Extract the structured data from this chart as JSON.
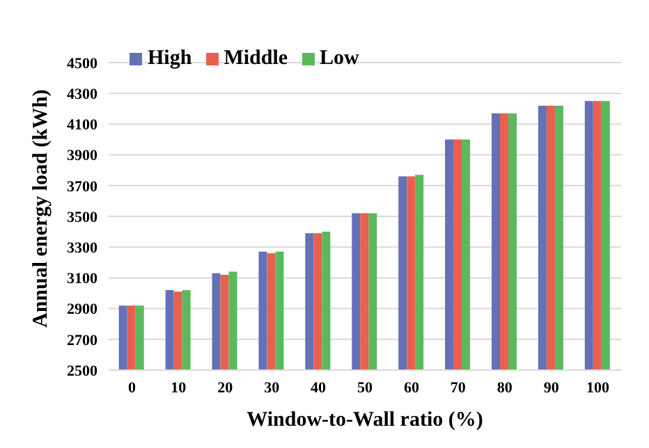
{
  "chart_data": {
    "type": "bar",
    "xlabel": "Window-to-Wall ratio (%)",
    "ylabel": "Annual energy load (kWh)",
    "categories": [
      "0",
      "10",
      "20",
      "30",
      "40",
      "50",
      "60",
      "70",
      "80",
      "90",
      "100"
    ],
    "series": [
      {
        "name": "High",
        "color": "#6470b8",
        "values": [
          2920,
          3020,
          3130,
          3270,
          3390,
          3520,
          3760,
          4000,
          4170,
          4220,
          4250
        ]
      },
      {
        "name": "Middle",
        "color": "#e8604f",
        "values": [
          2920,
          3010,
          3120,
          3260,
          3390,
          3520,
          3760,
          4000,
          4170,
          4220,
          4250
        ]
      },
      {
        "name": "Low",
        "color": "#5cb85c",
        "values": [
          2920,
          3020,
          3140,
          3270,
          3400,
          3520,
          3770,
          4000,
          4170,
          4220,
          4250
        ]
      }
    ],
    "ylim": [
      2500,
      4500
    ],
    "yticks": [
      2500,
      2700,
      2900,
      3100,
      3300,
      3500,
      3700,
      3900,
      4100,
      4300,
      4500
    ],
    "grid": "y",
    "legend": "top left"
  }
}
